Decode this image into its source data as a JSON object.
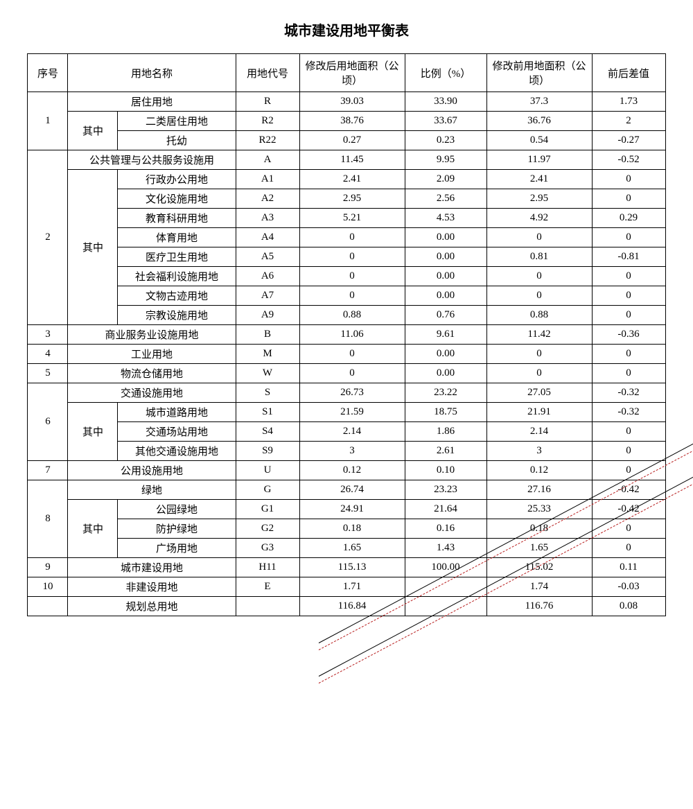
{
  "title": "城市建设用地平衡表",
  "headers": {
    "seq": "序号",
    "name": "用地名称",
    "code": "用地代号",
    "area_after": "修改后用地面积（公顷）",
    "ratio": "比例（%）",
    "area_before": "修改前用地面积（公顷）",
    "diff": "前后差值"
  },
  "qizhong": "其中",
  "rows": [
    {
      "seq": "1",
      "span_seq": 3,
      "span_qz": 2,
      "cat": "居住用地",
      "code": "R",
      "a1": "39.03",
      "r": "33.90",
      "a0": "37.3",
      "d": "1.73",
      "subs": [
        {
          "name": "二类居住用地",
          "code": "R2",
          "a1": "38.76",
          "r": "33.67",
          "a0": "36.76",
          "d": "2"
        },
        {
          "name": "托幼",
          "code": "R22",
          "a1": "0.27",
          "r": "0.23",
          "a0": "0.54",
          "d": "-0.27"
        }
      ]
    },
    {
      "seq": "2",
      "span_seq": 9,
      "span_qz": 8,
      "cat": "公共管理与公共服务设施用",
      "code": "A",
      "a1": "11.45",
      "r": "9.95",
      "a0": "11.97",
      "d": "-0.52",
      "subs": [
        {
          "name": "行政办公用地",
          "code": "A1",
          "a1": "2.41",
          "r": "2.09",
          "a0": "2.41",
          "d": "0"
        },
        {
          "name": "文化设施用地",
          "code": "A2",
          "a1": "2.95",
          "r": "2.56",
          "a0": "2.95",
          "d": "0"
        },
        {
          "name": "教育科研用地",
          "code": "A3",
          "a1": "5.21",
          "r": "4.53",
          "a0": "4.92",
          "d": "0.29"
        },
        {
          "name": "体育用地",
          "code": "A4",
          "a1": "0",
          "r": "0.00",
          "a0": "0",
          "d": "0"
        },
        {
          "name": "医疗卫生用地",
          "code": "A5",
          "a1": "0",
          "r": "0.00",
          "a0": "0.81",
          "d": "-0.81"
        },
        {
          "name": "社会福利设施用地",
          "code": "A6",
          "a1": "0",
          "r": "0.00",
          "a0": "0",
          "d": "0"
        },
        {
          "name": "文物古迹用地",
          "code": "A7",
          "a1": "0",
          "r": "0.00",
          "a0": "0",
          "d": "0"
        },
        {
          "name": "宗教设施用地",
          "code": "A9",
          "a1": "0.88",
          "r": "0.76",
          "a0": "0.88",
          "d": "0"
        }
      ]
    },
    {
      "seq": "3",
      "span_seq": 1,
      "cat": "商业服务业设施用地",
      "code": "B",
      "a1": "11.06",
      "r": "9.61",
      "a0": "11.42",
      "d": "-0.36"
    },
    {
      "seq": "4",
      "span_seq": 1,
      "cat": "工业用地",
      "code": "M",
      "a1": "0",
      "r": "0.00",
      "a0": "0",
      "d": "0"
    },
    {
      "seq": "5",
      "span_seq": 1,
      "cat": "物流仓储用地",
      "code": "W",
      "a1": "0",
      "r": "0.00",
      "a0": "0",
      "d": "0"
    },
    {
      "seq": "6",
      "span_seq": 4,
      "span_qz": 3,
      "cat": "交通设施用地",
      "code": "S",
      "a1": "26.73",
      "r": "23.22",
      "a0": "27.05",
      "d": "-0.32",
      "subs": [
        {
          "name": "城市道路用地",
          "code": "S1",
          "a1": "21.59",
          "r": "18.75",
          "a0": "21.91",
          "d": "-0.32"
        },
        {
          "name": "交通场站用地",
          "code": "S4",
          "a1": "2.14",
          "r": "1.86",
          "a0": "2.14",
          "d": "0"
        },
        {
          "name": "其他交通设施用地",
          "code": "S9",
          "a1": "3",
          "r": "2.61",
          "a0": "3",
          "d": "0"
        }
      ]
    },
    {
      "seq": "7",
      "span_seq": 1,
      "cat": "公用设施用地",
      "code": "U",
      "a1": "0.12",
      "r": "0.10",
      "a0": "0.12",
      "d": "0"
    },
    {
      "seq": "8",
      "span_seq": 4,
      "span_qz": 3,
      "cat": "绿地",
      "code": "G",
      "a1": "26.74",
      "r": "23.23",
      "a0": "27.16",
      "d": "-0.42",
      "subs": [
        {
          "name": "公园绿地",
          "code": "G1",
          "a1": "24.91",
          "r": "21.64",
          "a0": "25.33",
          "d": "-0.42"
        },
        {
          "name": "防护绿地",
          "code": "G2",
          "a1": "0.18",
          "r": "0.16",
          "a0": "0.18",
          "d": "0"
        },
        {
          "name": "广场用地",
          "code": "G3",
          "a1": "1.65",
          "r": "1.43",
          "a0": "1.65",
          "d": "0"
        }
      ]
    },
    {
      "seq": "9",
      "span_seq": 1,
      "cat": "城市建设用地",
      "code": "H11",
      "a1": "115.13",
      "r": "100.00",
      "a0": "115.02",
      "d": "0.11"
    },
    {
      "seq": "10",
      "span_seq": 1,
      "cat": "非建设用地",
      "code": "E",
      "a1": "1.71",
      "r": "",
      "a0": "1.74",
      "d": "-0.03"
    },
    {
      "seq": "",
      "span_seq": 1,
      "cat": "规划总用地",
      "code": "",
      "a1": "116.84",
      "r": "",
      "a0": "116.76",
      "d": "0.08"
    }
  ]
}
